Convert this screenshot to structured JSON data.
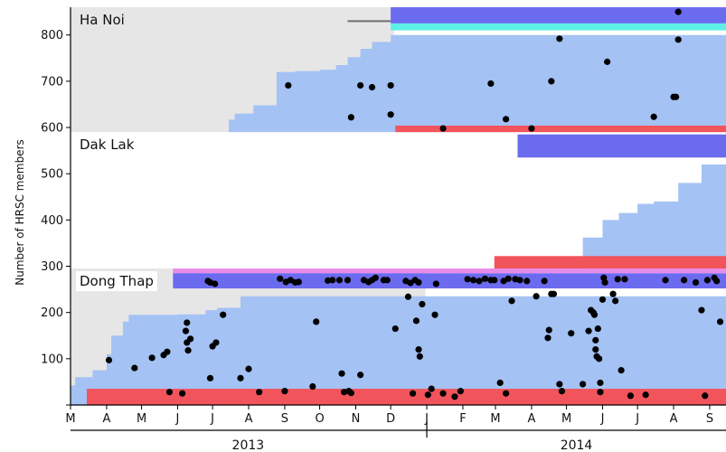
{
  "chart_data": {
    "type": "area",
    "title": "",
    "ylabel": "Number of HRSC members",
    "y_ticks": [
      0,
      100,
      200,
      300,
      400,
      500,
      600,
      700,
      800
    ],
    "y_tick_labels": [
      "",
      "100",
      "200",
      "300",
      "400",
      "500",
      "600",
      "700",
      "800"
    ],
    "ylim": [
      0,
      860
    ],
    "xlim": [
      "2013-03-01",
      "2014-09-15"
    ],
    "x_ticks": [
      {
        "date": "2013-03-01",
        "label": "M"
      },
      {
        "date": "2013-04-01",
        "label": "A"
      },
      {
        "date": "2013-05-01",
        "label": "M"
      },
      {
        "date": "2013-06-01",
        "label": "J"
      },
      {
        "date": "2013-07-01",
        "label": "J"
      },
      {
        "date": "2013-08-01",
        "label": "A"
      },
      {
        "date": "2013-09-01",
        "label": "S"
      },
      {
        "date": "2013-10-01",
        "label": "O"
      },
      {
        "date": "2013-11-01",
        "label": "N"
      },
      {
        "date": "2013-12-01",
        "label": "D"
      },
      {
        "date": "2014-01-01",
        "label": "J"
      },
      {
        "date": "2014-02-01",
        "label": "F"
      },
      {
        "date": "2014-03-01",
        "label": "M"
      },
      {
        "date": "2014-04-01",
        "label": "A"
      },
      {
        "date": "2014-05-01",
        "label": "M"
      },
      {
        "date": "2014-06-01",
        "label": "J"
      },
      {
        "date": "2014-07-01",
        "label": "J"
      },
      {
        "date": "2014-08-01",
        "label": "A"
      },
      {
        "date": "2014-09-01",
        "label": "S"
      }
    ],
    "years": [
      {
        "label": "2013",
        "from": "2013-03-01",
        "to": "2013-12-31"
      },
      {
        "label": "2014",
        "from": "2014-01-01",
        "to": "2014-09-15"
      }
    ],
    "grid": false,
    "colors": {
      "shaded_background": "#e6e6e6",
      "cumulative_members": "#a4c2f4",
      "red_band": "#f2545b",
      "blue_band": "#6b6bf0",
      "cyan_band": "#5ef0e6",
      "magenta_band": "#e98be8",
      "points": "#000000",
      "gray_line": "#707070"
    },
    "regions": [
      {
        "name": "Ha Noi",
        "y_range": [
          590,
          860
        ],
        "shaded_background": {
          "from": "2013-03-01",
          "to": "2013-12-04"
        },
        "cumulative_members": [
          [
            "2013-07-15",
            617
          ],
          [
            "2013-07-20",
            630
          ],
          [
            "2013-08-05",
            648
          ],
          [
            "2013-08-25",
            720
          ],
          [
            "2013-09-10",
            722
          ],
          [
            "2013-10-01",
            725
          ],
          [
            "2013-10-15",
            735
          ],
          [
            "2013-10-25",
            752
          ],
          [
            "2013-11-05",
            770
          ],
          [
            "2013-11-15",
            785
          ],
          [
            "2013-12-01",
            800
          ],
          [
            "2014-09-15",
            800
          ]
        ],
        "red_band": {
          "from": "2013-12-05",
          "to": "2014-09-15",
          "y0": 590,
          "y1": 604
        },
        "blue_band": {
          "from": "2013-12-01",
          "to": "2014-09-15",
          "y0": 825,
          "y1": 860
        },
        "cyan_band": {
          "from": "2013-12-01",
          "to": "2014-09-15",
          "y0": 810,
          "y1": 825
        },
        "gray_line": {
          "from": "2013-10-25",
          "to": "2013-12-01",
          "y": 830
        },
        "points": [
          [
            "2013-09-04",
            691
          ],
          [
            "2013-10-28",
            622
          ],
          [
            "2013-11-05",
            691
          ],
          [
            "2013-11-15",
            687
          ],
          [
            "2013-12-01",
            691
          ],
          [
            "2013-12-01",
            628
          ],
          [
            "2014-01-15",
            598
          ],
          [
            "2014-02-25",
            695
          ],
          [
            "2014-03-10",
            618
          ],
          [
            "2014-04-01",
            598
          ],
          [
            "2014-04-18",
            700
          ],
          [
            "2014-04-25",
            792
          ],
          [
            "2014-06-05",
            742
          ],
          [
            "2014-07-15",
            623
          ],
          [
            "2014-08-01",
            666
          ],
          [
            "2014-08-03",
            666
          ],
          [
            "2014-08-05",
            850
          ],
          [
            "2014-08-05",
            790
          ]
        ]
      },
      {
        "name": "Dak Lak",
        "y_range": [
          295,
          590
        ],
        "cumulative_members": [
          [
            "2014-05-15",
            362
          ],
          [
            "2014-06-01",
            400
          ],
          [
            "2014-06-15",
            415
          ],
          [
            "2014-07-01",
            435
          ],
          [
            "2014-07-15",
            440
          ],
          [
            "2014-08-05",
            480
          ],
          [
            "2014-08-25",
            520
          ],
          [
            "2014-09-15",
            540
          ]
        ],
        "red_band": {
          "from": "2014-02-28",
          "to": "2014-09-15",
          "y0": 295,
          "y1": 322
        },
        "blue_band": {
          "from": "2014-03-20",
          "to": "2014-09-15",
          "y0": 535,
          "y1": 585
        }
      },
      {
        "name": "Dong Thap",
        "y_range": [
          0,
          295
        ],
        "shaded_background": {
          "from": "2013-03-01",
          "to": "2013-12-31"
        },
        "cumulative_members": [
          [
            "2013-03-01",
            42
          ],
          [
            "2013-03-05",
            60
          ],
          [
            "2013-03-20",
            75
          ],
          [
            "2013-04-01",
            110
          ],
          [
            "2013-04-05",
            150
          ],
          [
            "2013-04-15",
            180
          ],
          [
            "2013-04-20",
            195
          ],
          [
            "2013-06-01",
            196
          ],
          [
            "2013-06-25",
            205
          ],
          [
            "2013-07-05",
            210
          ],
          [
            "2013-07-25",
            235
          ],
          [
            "2014-09-15",
            235
          ]
        ],
        "red_band": {
          "from": "2013-03-15",
          "to": "2014-09-15",
          "y0": 0,
          "y1": 35
        },
        "blue_band": {
          "from": "2013-05-28",
          "to": "2014-09-15",
          "y0": 252,
          "y1": 285
        },
        "magenta_band": {
          "from": "2013-05-28",
          "to": "2014-09-15",
          "y0": 285,
          "y1": 295
        },
        "points": [
          [
            "2013-04-03",
            97
          ],
          [
            "2013-04-25",
            80
          ],
          [
            "2013-05-10",
            102
          ],
          [
            "2013-05-20",
            108
          ],
          [
            "2013-05-23",
            115
          ],
          [
            "2013-05-25",
            28
          ],
          [
            "2013-06-05",
            25
          ],
          [
            "2013-06-08",
            160
          ],
          [
            "2013-06-09",
            178
          ],
          [
            "2013-06-09",
            135
          ],
          [
            "2013-06-10",
            118
          ],
          [
            "2013-06-12",
            143
          ],
          [
            "2013-06-27",
            268
          ],
          [
            "2013-06-29",
            265
          ],
          [
            "2013-06-29",
            58
          ],
          [
            "2013-07-01",
            127
          ],
          [
            "2013-07-03",
            262
          ],
          [
            "2013-07-04",
            135
          ],
          [
            "2013-07-10",
            195
          ],
          [
            "2013-07-25",
            58
          ],
          [
            "2013-08-01",
            78
          ],
          [
            "2013-08-10",
            28
          ],
          [
            "2013-08-28",
            273
          ],
          [
            "2013-09-01",
            30
          ],
          [
            "2013-09-02",
            266
          ],
          [
            "2013-09-06",
            270
          ],
          [
            "2013-09-10",
            265
          ],
          [
            "2013-09-13",
            266
          ],
          [
            "2013-09-25",
            40
          ],
          [
            "2013-09-28",
            180
          ],
          [
            "2013-10-08",
            269
          ],
          [
            "2013-10-12",
            270
          ],
          [
            "2013-10-18",
            270
          ],
          [
            "2013-10-20",
            68
          ],
          [
            "2013-10-22",
            28
          ],
          [
            "2013-10-25",
            270
          ],
          [
            "2013-10-26",
            30
          ],
          [
            "2013-10-28",
            26
          ],
          [
            "2013-11-05",
            65
          ],
          [
            "2013-11-08",
            270
          ],
          [
            "2013-11-12",
            266
          ],
          [
            "2013-11-15",
            270
          ],
          [
            "2013-11-18",
            275
          ],
          [
            "2013-11-25",
            270
          ],
          [
            "2013-11-28",
            270
          ],
          [
            "2013-12-05",
            165
          ],
          [
            "2013-12-14",
            268
          ],
          [
            "2013-12-16",
            234
          ],
          [
            "2013-12-18",
            264
          ],
          [
            "2013-12-20",
            25
          ],
          [
            "2013-12-22",
            270
          ],
          [
            "2013-12-23",
            182
          ],
          [
            "2013-12-25",
            265
          ],
          [
            "2013-12-25",
            120
          ],
          [
            "2013-12-26",
            105
          ],
          [
            "2013-12-28",
            218
          ],
          [
            "2014-01-02",
            22
          ],
          [
            "2014-01-05",
            35
          ],
          [
            "2014-01-08",
            195
          ],
          [
            "2014-01-09",
            262
          ],
          [
            "2014-01-15",
            25
          ],
          [
            "2014-01-25",
            18
          ],
          [
            "2014-01-30",
            30
          ],
          [
            "2014-02-05",
            272
          ],
          [
            "2014-02-10",
            270
          ],
          [
            "2014-02-15",
            268
          ],
          [
            "2014-02-20",
            273
          ],
          [
            "2014-02-25",
            270
          ],
          [
            "2014-02-28",
            270
          ],
          [
            "2014-03-05",
            48
          ],
          [
            "2014-03-08",
            268
          ],
          [
            "2014-03-10",
            25
          ],
          [
            "2014-03-12",
            273
          ],
          [
            "2014-03-15",
            225
          ],
          [
            "2014-03-18",
            272
          ],
          [
            "2014-03-22",
            270
          ],
          [
            "2014-03-28",
            268
          ],
          [
            "2014-04-05",
            235
          ],
          [
            "2014-04-12",
            268
          ],
          [
            "2014-04-15",
            145
          ],
          [
            "2014-04-16",
            162
          ],
          [
            "2014-04-18",
            240
          ],
          [
            "2014-04-20",
            240
          ],
          [
            "2014-04-25",
            45
          ],
          [
            "2014-04-27",
            30
          ],
          [
            "2014-05-05",
            155
          ],
          [
            "2014-05-15",
            45
          ],
          [
            "2014-05-20",
            160
          ],
          [
            "2014-05-22",
            205
          ],
          [
            "2014-05-24",
            200
          ],
          [
            "2014-05-25",
            195
          ],
          [
            "2014-05-26",
            140
          ],
          [
            "2014-05-26",
            120
          ],
          [
            "2014-05-27",
            105
          ],
          [
            "2014-05-28",
            165
          ],
          [
            "2014-05-29",
            100
          ],
          [
            "2014-05-30",
            48
          ],
          [
            "2014-05-30",
            28
          ],
          [
            "2014-06-01",
            228
          ],
          [
            "2014-06-02",
            275
          ],
          [
            "2014-06-03",
            265
          ],
          [
            "2014-06-10",
            240
          ],
          [
            "2014-06-12",
            225
          ],
          [
            "2014-06-14",
            272
          ],
          [
            "2014-06-17",
            75
          ],
          [
            "2014-06-20",
            272
          ],
          [
            "2014-06-25",
            20
          ],
          [
            "2014-07-08",
            22
          ],
          [
            "2014-07-25",
            270
          ],
          [
            "2014-08-10",
            270
          ],
          [
            "2014-08-20",
            265
          ],
          [
            "2014-08-25",
            205
          ],
          [
            "2014-08-28",
            20
          ],
          [
            "2014-08-30",
            270
          ],
          [
            "2014-09-05",
            275
          ],
          [
            "2014-09-07",
            268
          ],
          [
            "2014-09-10",
            180
          ]
        ]
      }
    ]
  }
}
